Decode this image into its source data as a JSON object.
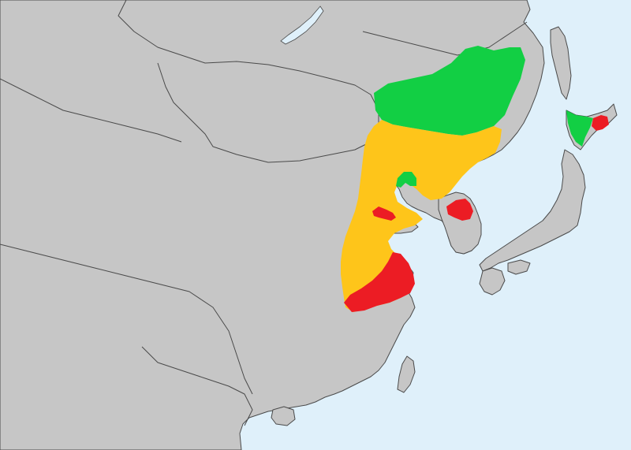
{
  "map": {
    "colors": {
      "sea": "#dff0fa",
      "land": "#c6c6c6",
      "border": "#4a4a4a",
      "green": "#12cf44",
      "yellow": "#fec51a",
      "red": "#ec1c24"
    },
    "regions": [
      {
        "id": "manchuria-north",
        "color": "green"
      },
      {
        "id": "north-china",
        "color": "yellow"
      },
      {
        "id": "liaodong-bay-inner",
        "color": "green"
      },
      {
        "id": "shandong-coast",
        "color": "red"
      },
      {
        "id": "north-korea-west",
        "color": "red"
      },
      {
        "id": "jiangsu-coast",
        "color": "red"
      },
      {
        "id": "hokkaido-west",
        "color": "green"
      },
      {
        "id": "hokkaido-east",
        "color": "red"
      }
    ]
  }
}
